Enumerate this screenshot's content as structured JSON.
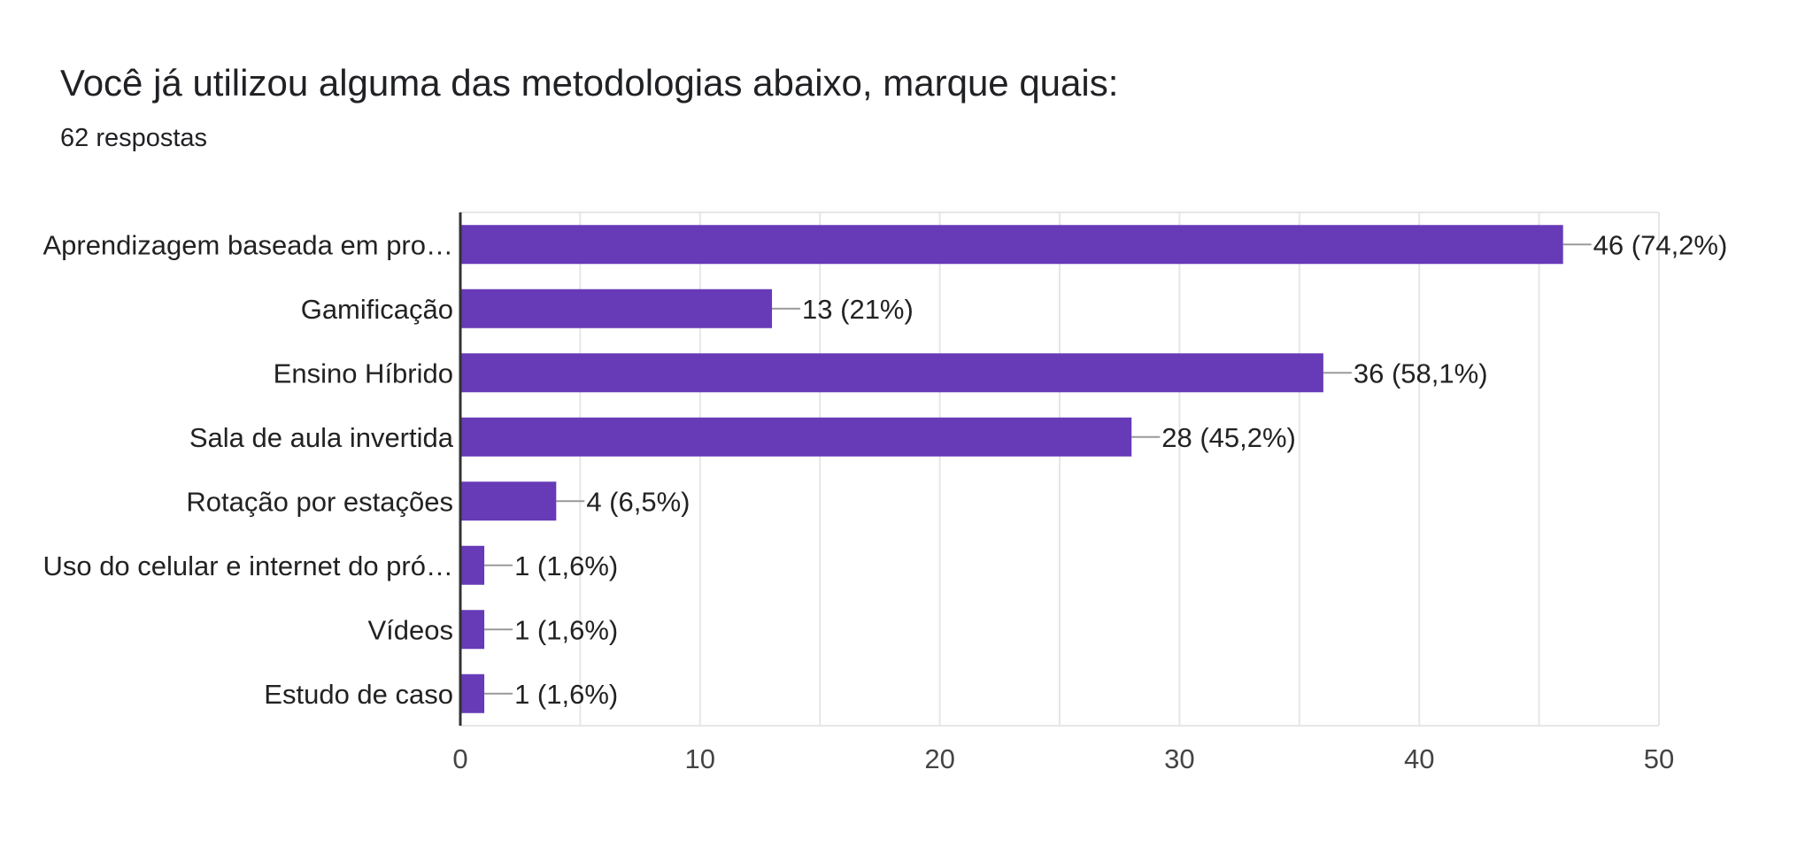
{
  "header": {
    "title": "Você já utilizou alguma das metodologias abaixo, marque quais:",
    "subtitle": "62 respostas"
  },
  "colors": {
    "bar": "#673ab7",
    "grid": "#e6e6e6",
    "axis": "#333333",
    "connector": "#999999"
  },
  "chart_data": {
    "type": "bar",
    "orientation": "horizontal",
    "categories": [
      "Aprendizagem baseada em pro…",
      "Gamificação",
      "Ensino Híbrido",
      "Sala de aula invertida",
      "Rotação por estações",
      "Uso do celular e internet do pró…",
      "Vídeos",
      "Estudo de caso"
    ],
    "values": [
      46,
      13,
      36,
      28,
      4,
      1,
      1,
      1
    ],
    "data_labels": [
      "46 (74,2%)",
      "13 (21%)",
      "36 (58,1%)",
      "28 (45,2%)",
      "4 (6,5%)",
      "1 (1,6%)",
      "1 (1,6%)",
      "1 (1,6%)"
    ],
    "xlim": [
      0,
      50
    ],
    "xticks": [
      0,
      10,
      20,
      30,
      40,
      50
    ],
    "grid": true,
    "legend": "none"
  }
}
